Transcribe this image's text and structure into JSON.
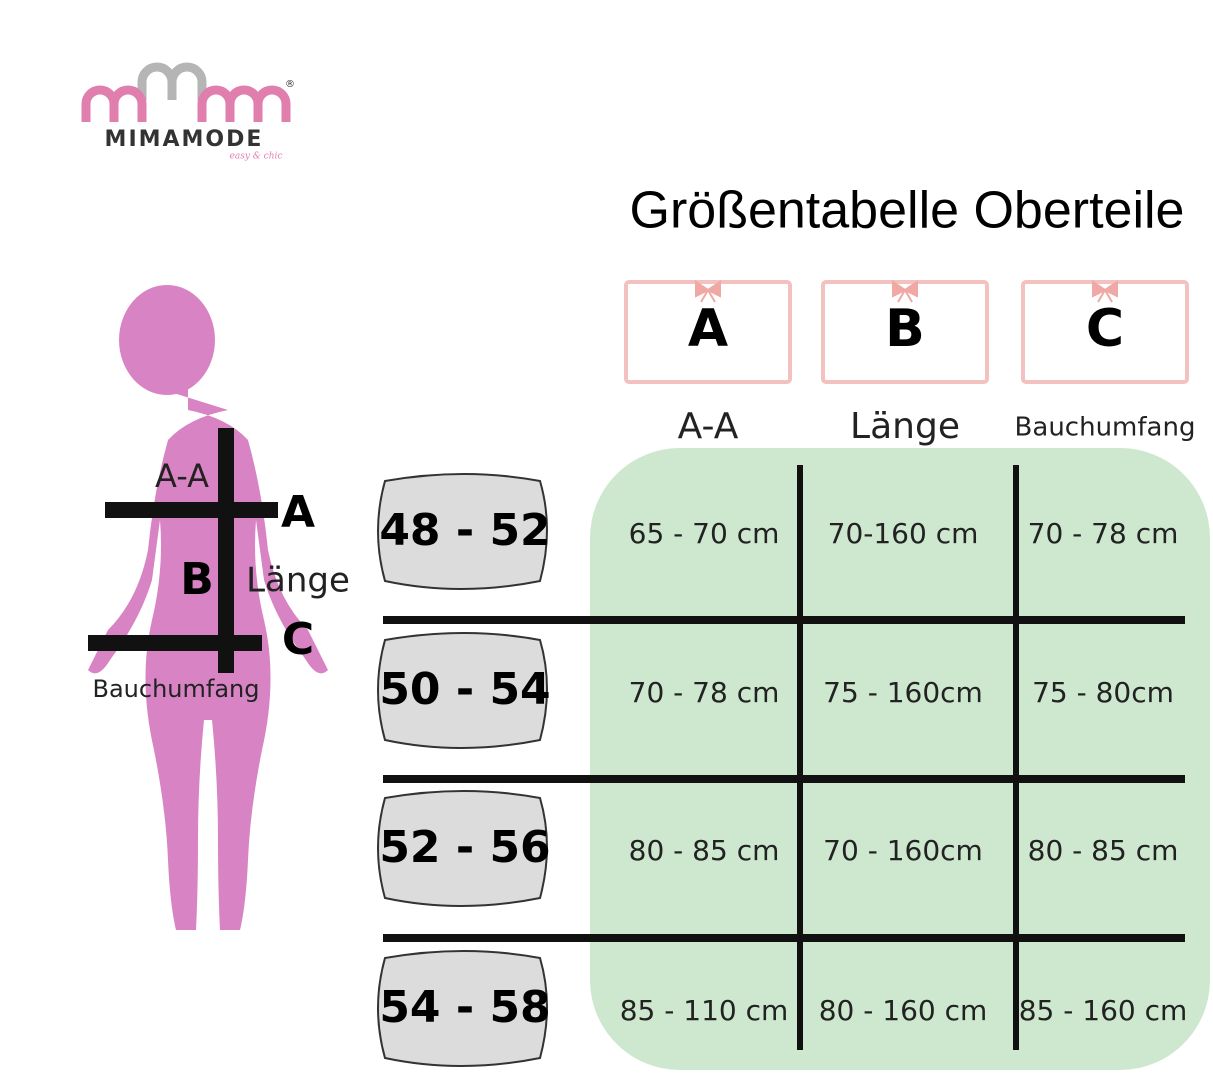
{
  "logo": {
    "name": "MIMAMODE",
    "tagline": "easy & chic",
    "mark": "®"
  },
  "title": "Größentabelle Oberteile",
  "figure": {
    "aa": "A-A",
    "a": "A",
    "b": "B",
    "laenge": "Länge",
    "c": "C",
    "bauch": "Bauchumfang"
  },
  "columns": [
    {
      "letter": "A",
      "label": "A-A"
    },
    {
      "letter": "B",
      "label": "Länge"
    },
    {
      "letter": "C",
      "label": "Bauchumfang"
    }
  ],
  "rows": [
    {
      "size": "48 - 52",
      "cells": [
        "65 - 70 cm",
        "70-160 cm",
        "70 - 78 cm"
      ]
    },
    {
      "size": "50 - 54",
      "cells": [
        "70 - 78 cm",
        "75 - 160cm",
        "75 - 80cm"
      ]
    },
    {
      "size": "52 - 56",
      "cells": [
        "80 - 85 cm",
        "70 - 160cm",
        "80 - 85 cm"
      ]
    },
    {
      "size": "54 - 58",
      "cells": [
        "85 - 110 cm",
        "80 - 160 cm",
        "85 - 160 cm"
      ]
    }
  ]
}
